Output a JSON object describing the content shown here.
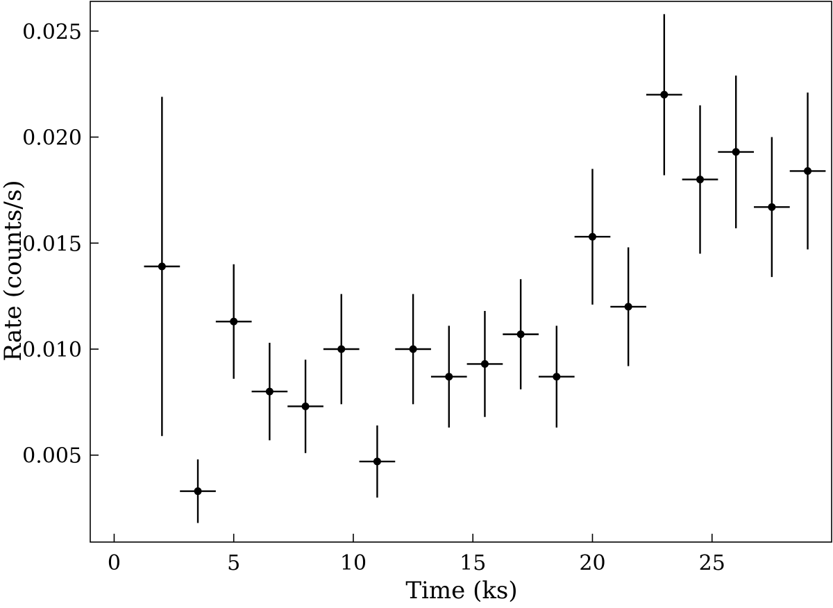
{
  "chart_data": {
    "type": "scatter",
    "title": "",
    "xlabel": "Time (ks)",
    "ylabel": "Rate (counts/s)",
    "xlim": [
      -1,
      30
    ],
    "ylim": [
      0.0009,
      0.0264
    ],
    "xticks": [
      0,
      5,
      10,
      15,
      20,
      25
    ],
    "xtick_labels": [
      "0",
      "5",
      "10",
      "15",
      "20",
      "25"
    ],
    "yticks": [
      0.005,
      0.01,
      0.015,
      0.02,
      0.025
    ],
    "ytick_labels": [
      "0.005",
      "0.010",
      "0.015",
      "0.020",
      "0.025"
    ],
    "grid": false,
    "legend": "none",
    "color": "#000000",
    "x_half_width": 0.75,
    "points": [
      {
        "x": 2.0,
        "y": 0.0139,
        "err_low": 0.008,
        "err_high": 0.008
      },
      {
        "x": 3.5,
        "y": 0.0033,
        "err_low": 0.0015,
        "err_high": 0.0015
      },
      {
        "x": 5.0,
        "y": 0.0113,
        "err_low": 0.0027,
        "err_high": 0.0027
      },
      {
        "x": 6.5,
        "y": 0.008,
        "err_low": 0.0023,
        "err_high": 0.0023
      },
      {
        "x": 8.0,
        "y": 0.0073,
        "err_low": 0.0022,
        "err_high": 0.0022
      },
      {
        "x": 9.5,
        "y": 0.01,
        "err_low": 0.0026,
        "err_high": 0.0026
      },
      {
        "x": 11.0,
        "y": 0.0047,
        "err_low": 0.0017,
        "err_high": 0.0017
      },
      {
        "x": 12.5,
        "y": 0.01,
        "err_low": 0.0026,
        "err_high": 0.0026
      },
      {
        "x": 14.0,
        "y": 0.0087,
        "err_low": 0.0024,
        "err_high": 0.0024
      },
      {
        "x": 15.5,
        "y": 0.0093,
        "err_low": 0.0025,
        "err_high": 0.0025
      },
      {
        "x": 17.0,
        "y": 0.0107,
        "err_low": 0.0026,
        "err_high": 0.0026
      },
      {
        "x": 18.5,
        "y": 0.0087,
        "err_low": 0.0024,
        "err_high": 0.0024
      },
      {
        "x": 20.0,
        "y": 0.0153,
        "err_low": 0.0032,
        "err_high": 0.0032
      },
      {
        "x": 21.5,
        "y": 0.012,
        "err_low": 0.0028,
        "err_high": 0.0028
      },
      {
        "x": 23.0,
        "y": 0.022,
        "err_low": 0.0038,
        "err_high": 0.0038
      },
      {
        "x": 24.5,
        "y": 0.018,
        "err_low": 0.0035,
        "err_high": 0.0035
      },
      {
        "x": 26.0,
        "y": 0.0193,
        "err_low": 0.0036,
        "err_high": 0.0036
      },
      {
        "x": 27.5,
        "y": 0.0167,
        "err_low": 0.0033,
        "err_high": 0.0033
      },
      {
        "x": 29.0,
        "y": 0.0184,
        "err_low": 0.0037,
        "err_high": 0.0037
      }
    ]
  }
}
